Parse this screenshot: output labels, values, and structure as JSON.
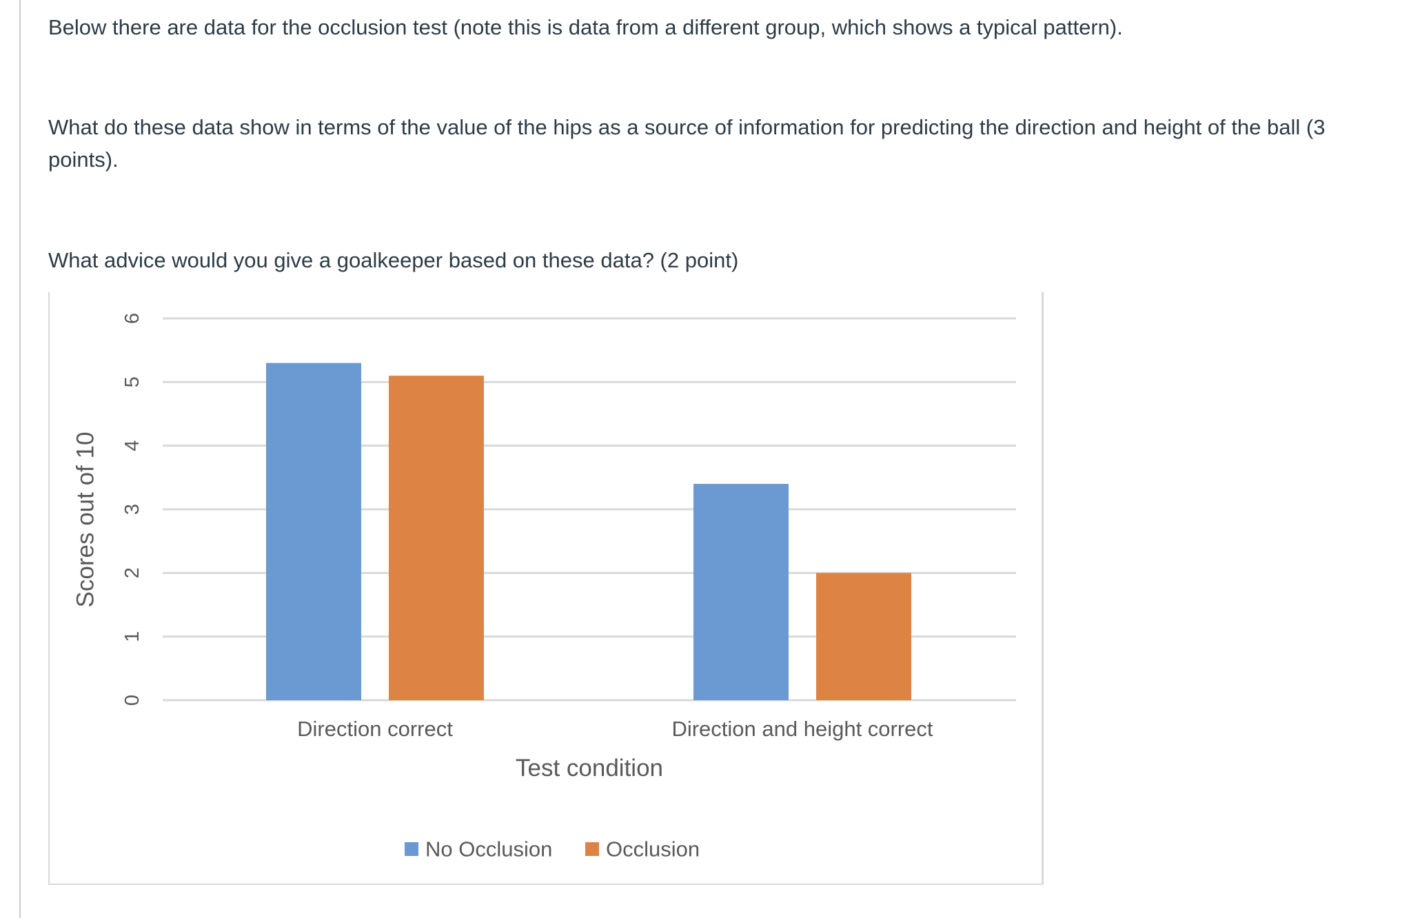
{
  "question": {
    "intro": "Below there are data for the occlusion test (note this is data from a different group, which shows a typical pattern).",
    "hips_question": "What do these data show in terms of the value of the hips as a source of information for predicting the direction and height of the ball (3 points).",
    "advice_question": "What advice would you give a goalkeeper based on these data? (2 point)"
  },
  "chart_data": {
    "type": "bar",
    "title": "",
    "categories": [
      "Direction correct",
      "Direction and height correct"
    ],
    "series": [
      {
        "name": "No Occlusion",
        "color": "#6a9ad1",
        "values": [
          5.3,
          3.4
        ]
      },
      {
        "name": "Occlusion",
        "color": "#dd8444",
        "values": [
          5.1,
          2.0
        ]
      }
    ],
    "xlabel": "Test condition",
    "ylabel": "Scores out of 10",
    "ylim": [
      0,
      6
    ],
    "yticks": [
      0,
      1,
      2,
      3,
      4,
      5,
      6
    ],
    "grid": true,
    "legend": "bottom-center"
  }
}
